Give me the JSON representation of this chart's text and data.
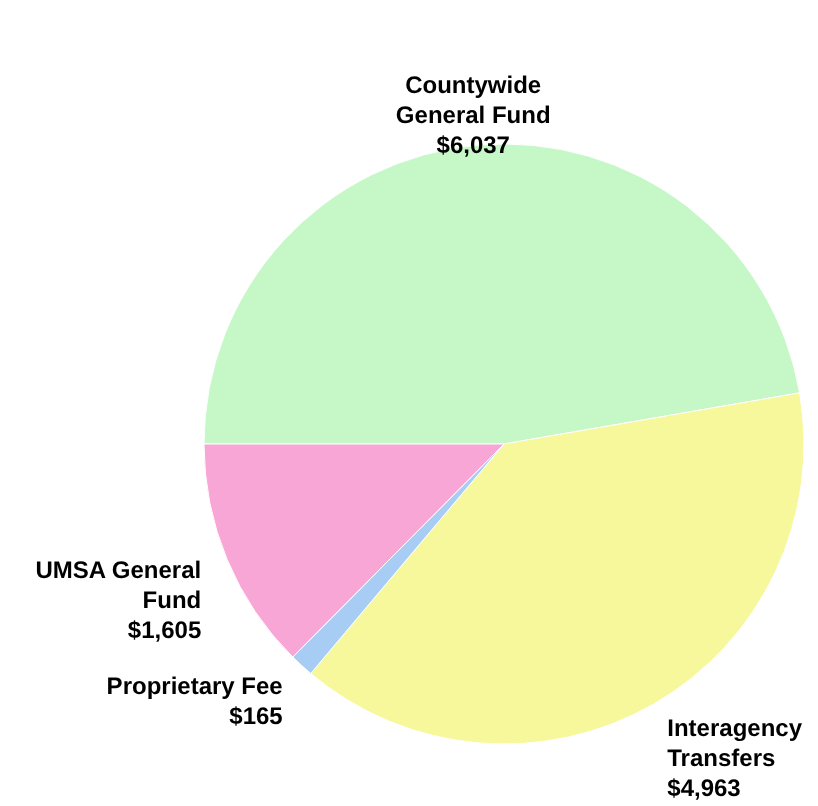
{
  "chart_data": {
    "type": "pie",
    "categories": [
      "Countywide General Fund",
      "Interagency Transfers",
      "Proprietary Fee",
      "UMSA General Fund"
    ],
    "values": [
      6037,
      4963,
      165,
      1605
    ],
    "value_labels": [
      "$6,037",
      "$4,963",
      "$165",
      "$1,605"
    ],
    "colors": [
      "#c6f7c6",
      "#f7f79c",
      "#a8cdf5",
      "#f7a6d6"
    ]
  }
}
